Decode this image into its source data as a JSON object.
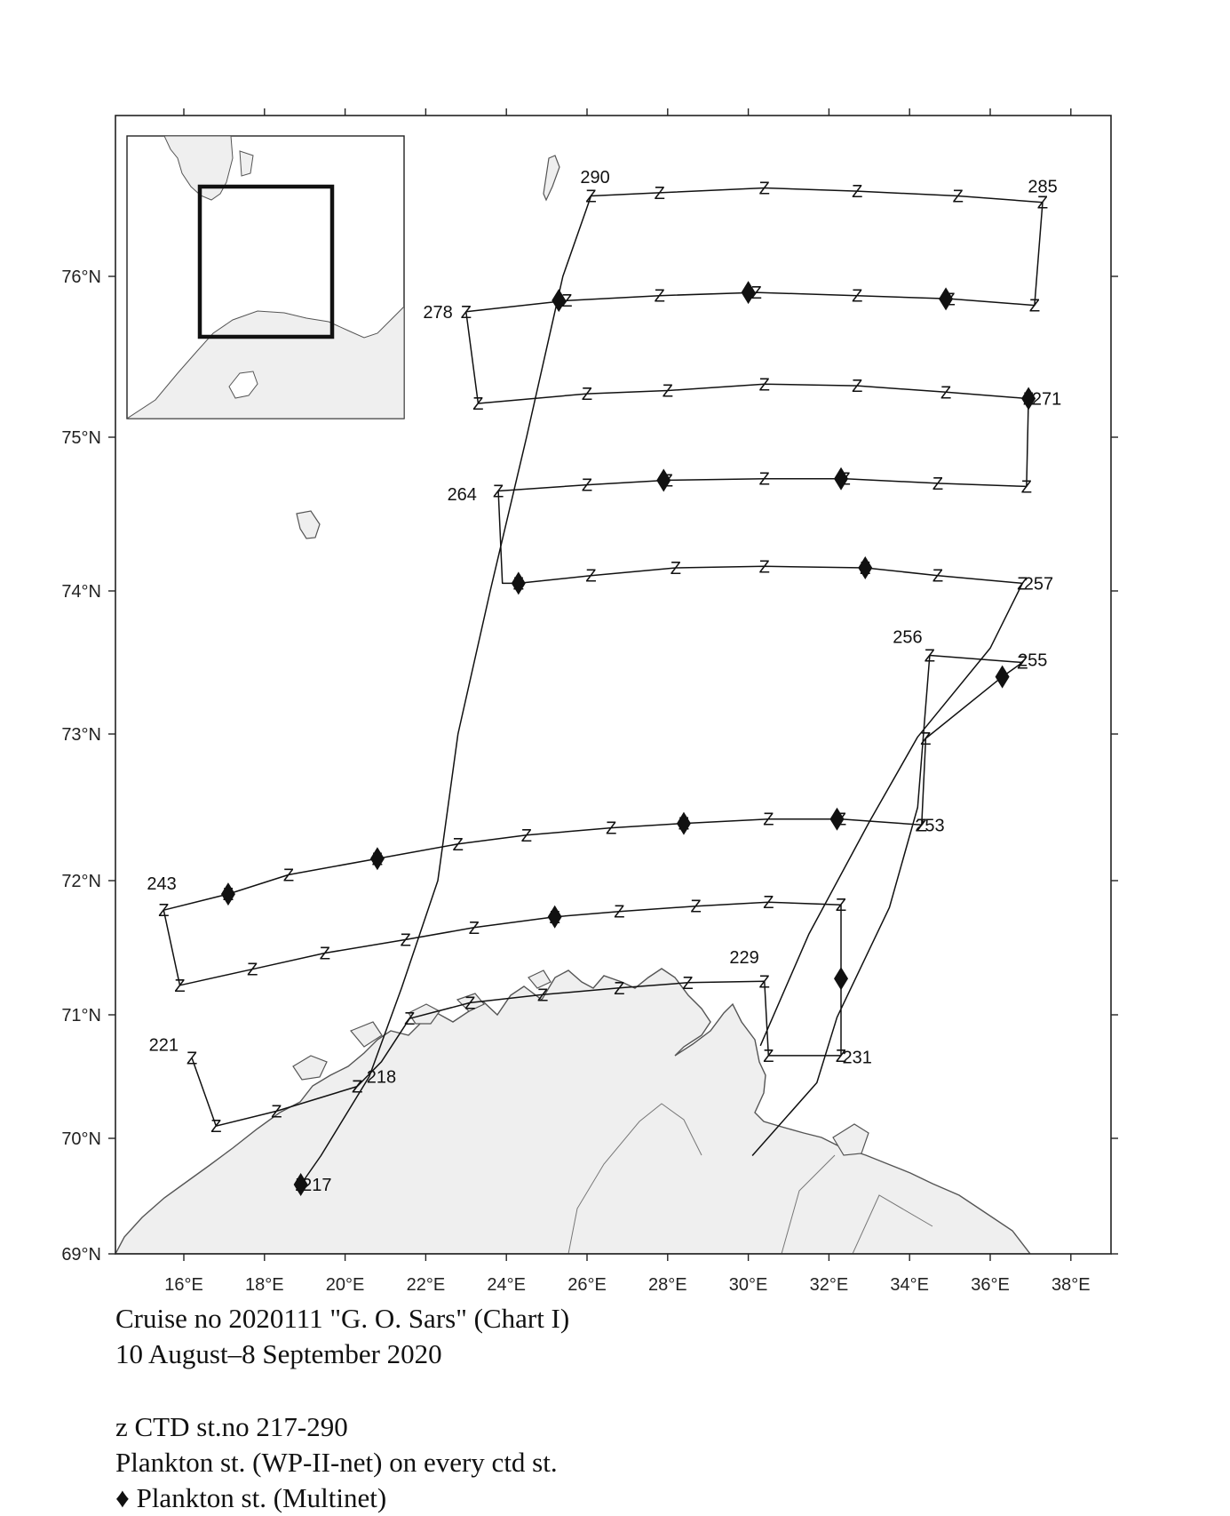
{
  "map": {
    "lat_ticks": [
      {
        "label": "76°N",
        "lat": 76
      },
      {
        "label": "75°N",
        "lat": 75
      },
      {
        "label": "74°N",
        "lat": 74
      },
      {
        "label": "73°N",
        "lat": 73
      },
      {
        "label": "72°N",
        "lat": 72
      },
      {
        "label": "71°N",
        "lat": 71
      },
      {
        "label": "70°N",
        "lat": 70
      },
      {
        "label": "69°N",
        "lat": 69
      }
    ],
    "lon_ticks": [
      {
        "label": "16°E",
        "lon": 16
      },
      {
        "label": "18°E",
        "lon": 18
      },
      {
        "label": "20°E",
        "lon": 20
      },
      {
        "label": "22°E",
        "lon": 22
      },
      {
        "label": "24°E",
        "lon": 24
      },
      {
        "label": "26°E",
        "lon": 26
      },
      {
        "label": "28°E",
        "lon": 28
      },
      {
        "label": "30°E",
        "lon": 30
      },
      {
        "label": "32°E",
        "lon": 32
      },
      {
        "label": "34°E",
        "lon": 34
      },
      {
        "label": "36°E",
        "lon": 36
      },
      {
        "label": "38°E",
        "lon": 38
      }
    ],
    "ctd_symbol": "Z",
    "station_labels": [
      {
        "text": "290",
        "lon": 26.2,
        "lat": 76.62
      },
      {
        "text": "285",
        "lon": 37.3,
        "lat": 76.56
      },
      {
        "text": "278",
        "lon": 22.3,
        "lat": 75.78
      },
      {
        "text": "271",
        "lon": 37.4,
        "lat": 75.24
      },
      {
        "text": "264",
        "lon": 22.9,
        "lat": 74.63
      },
      {
        "text": "257",
        "lon": 37.2,
        "lat": 74.05
      },
      {
        "text": "256",
        "lon": 33.95,
        "lat": 73.68
      },
      {
        "text": "255",
        "lon": 37.05,
        "lat": 73.52
      },
      {
        "text": "253",
        "lon": 34.5,
        "lat": 72.38
      },
      {
        "text": "243",
        "lon": 15.45,
        "lat": 71.98
      },
      {
        "text": "229",
        "lon": 29.9,
        "lat": 71.43
      },
      {
        "text": "221",
        "lon": 15.5,
        "lat": 70.76
      },
      {
        "text": "231",
        "lon": 32.7,
        "lat": 70.66
      },
      {
        "text": "218",
        "lon": 20.9,
        "lat": 70.5
      },
      {
        "text": "217",
        "lon": 19.3,
        "lat": 69.6
      }
    ],
    "transects": [
      [
        [
          16.2,
          70.65
        ],
        [
          16.8,
          70.1
        ],
        [
          18.3,
          70.22
        ],
        [
          20.3,
          70.42
        ],
        [
          20.9,
          70.62
        ],
        [
          21.6,
          70.97
        ],
        [
          23.1,
          71.09
        ],
        [
          24.9,
          71.15
        ],
        [
          26.8,
          71.2
        ],
        [
          28.5,
          71.24
        ],
        [
          30.4,
          71.25
        ],
        [
          30.5,
          70.67
        ],
        [
          32.3,
          70.67
        ],
        [
          32.3,
          71.27
        ],
        [
          32.3,
          71.82
        ],
        [
          30.5,
          71.84
        ],
        [
          28.7,
          71.81
        ],
        [
          26.8,
          71.77
        ],
        [
          25.2,
          71.73
        ],
        [
          23.2,
          71.65
        ],
        [
          21.5,
          71.56
        ],
        [
          19.5,
          71.46
        ],
        [
          17.7,
          71.34
        ],
        [
          15.9,
          71.22
        ],
        [
          15.5,
          71.78
        ],
        [
          17.1,
          71.9
        ],
        [
          18.6,
          72.04
        ],
        [
          20.8,
          72.15
        ],
        [
          22.8,
          72.25
        ],
        [
          24.5,
          72.31
        ],
        [
          26.6,
          72.36
        ],
        [
          28.4,
          72.39
        ],
        [
          30.5,
          72.42
        ],
        [
          32.3,
          72.42
        ],
        [
          34.3,
          72.38
        ],
        [
          34.4,
          72.97
        ],
        [
          36.3,
          73.4
        ],
        [
          36.8,
          73.5
        ],
        [
          34.5,
          73.55
        ],
        [
          34.2,
          72.5
        ],
        [
          33.5,
          71.8
        ],
        [
          32.2,
          70.98
        ],
        [
          31.7,
          70.45
        ],
        [
          30.1,
          69.85
        ]
      ],
      [
        [
          30.3,
          70.75
        ],
        [
          31.5,
          71.6
        ],
        [
          33.0,
          72.4
        ],
        [
          34.2,
          72.98
        ],
        [
          36.0,
          73.6
        ],
        [
          36.8,
          74.05
        ],
        [
          34.7,
          74.1
        ],
        [
          32.9,
          74.15
        ],
        [
          30.4,
          74.16
        ],
        [
          28.2,
          74.15
        ],
        [
          26.1,
          74.1
        ],
        [
          24.3,
          74.05
        ],
        [
          23.9,
          74.05
        ],
        [
          23.8,
          74.65
        ],
        [
          26.0,
          74.69
        ],
        [
          28.0,
          74.72
        ],
        [
          30.4,
          74.73
        ],
        [
          32.4,
          74.73
        ],
        [
          34.7,
          74.7
        ],
        [
          36.9,
          74.68
        ],
        [
          36.95,
          75.24
        ],
        [
          34.9,
          75.28
        ],
        [
          32.7,
          75.32
        ],
        [
          30.4,
          75.33
        ],
        [
          28.0,
          75.29
        ],
        [
          26.0,
          75.27
        ],
        [
          23.3,
          75.21
        ],
        [
          23.0,
          75.78
        ],
        [
          25.5,
          75.85
        ],
        [
          27.8,
          75.88
        ],
        [
          30.2,
          75.9
        ],
        [
          32.7,
          75.88
        ],
        [
          35.0,
          75.86
        ],
        [
          37.1,
          75.82
        ],
        [
          37.3,
          76.46
        ],
        [
          35.2,
          76.5
        ],
        [
          32.7,
          76.53
        ],
        [
          30.4,
          76.55
        ],
        [
          27.8,
          76.52
        ],
        [
          26.1,
          76.5
        ]
      ],
      [
        [
          26.1,
          76.5
        ],
        [
          25.4,
          76.0
        ],
        [
          24.5,
          75.0
        ],
        [
          23.6,
          74.0
        ],
        [
          22.8,
          73.0
        ],
        [
          22.3,
          72.0
        ],
        [
          21.4,
          71.2
        ],
        [
          20.6,
          70.5
        ],
        [
          19.4,
          69.85
        ],
        [
          18.9,
          69.6
        ]
      ]
    ],
    "ctd_stations": [
      [
        16.2,
        70.65
      ],
      [
        16.8,
        70.1
      ],
      [
        18.3,
        70.22
      ],
      [
        20.3,
        70.42
      ],
      [
        21.6,
        70.97
      ],
      [
        23.1,
        71.09
      ],
      [
        24.9,
        71.15
      ],
      [
        26.8,
        71.2
      ],
      [
        28.5,
        71.24
      ],
      [
        30.4,
        71.25
      ],
      [
        30.5,
        70.67
      ],
      [
        32.3,
        70.67
      ],
      [
        32.3,
        71.82
      ],
      [
        30.5,
        71.84
      ],
      [
        28.7,
        71.81
      ],
      [
        26.8,
        71.77
      ],
      [
        25.2,
        71.73
      ],
      [
        23.2,
        71.65
      ],
      [
        21.5,
        71.56
      ],
      [
        19.5,
        71.46
      ],
      [
        17.7,
        71.34
      ],
      [
        15.9,
        71.22
      ],
      [
        15.5,
        71.78
      ],
      [
        17.1,
        71.9
      ],
      [
        18.6,
        72.04
      ],
      [
        20.8,
        72.15
      ],
      [
        22.8,
        72.25
      ],
      [
        24.5,
        72.31
      ],
      [
        26.6,
        72.36
      ],
      [
        28.4,
        72.39
      ],
      [
        30.5,
        72.42
      ],
      [
        32.3,
        72.42
      ],
      [
        34.3,
        72.38
      ],
      [
        34.4,
        72.97
      ],
      [
        36.8,
        73.5
      ],
      [
        34.5,
        73.55
      ],
      [
        36.8,
        74.05
      ],
      [
        34.7,
        74.1
      ],
      [
        32.9,
        74.15
      ],
      [
        30.4,
        74.16
      ],
      [
        28.2,
        74.15
      ],
      [
        26.1,
        74.1
      ],
      [
        24.3,
        74.05
      ],
      [
        23.8,
        74.65
      ],
      [
        26.0,
        74.69
      ],
      [
        28.0,
        74.72
      ],
      [
        30.4,
        74.73
      ],
      [
        32.4,
        74.73
      ],
      [
        34.7,
        74.7
      ],
      [
        36.9,
        74.68
      ],
      [
        36.95,
        75.24
      ],
      [
        34.9,
        75.28
      ],
      [
        32.7,
        75.32
      ],
      [
        30.4,
        75.33
      ],
      [
        28.0,
        75.29
      ],
      [
        26.0,
        75.27
      ],
      [
        23.3,
        75.21
      ],
      [
        23.0,
        75.78
      ],
      [
        25.5,
        75.85
      ],
      [
        27.8,
        75.88
      ],
      [
        30.2,
        75.9
      ],
      [
        32.7,
        75.88
      ],
      [
        35.0,
        75.86
      ],
      [
        37.1,
        75.82
      ],
      [
        37.3,
        76.46
      ],
      [
        35.2,
        76.5
      ],
      [
        32.7,
        76.53
      ],
      [
        30.4,
        76.55
      ],
      [
        27.8,
        76.52
      ],
      [
        26.1,
        76.5
      ],
      [
        18.9,
        69.6
      ],
      [
        20.3,
        70.42
      ]
    ],
    "multinet_stations": [
      [
        18.9,
        69.6
      ],
      [
        32.3,
        71.27
      ],
      [
        25.2,
        71.73
      ],
      [
        17.1,
        71.9
      ],
      [
        20.8,
        72.15
      ],
      [
        28.4,
        72.39
      ],
      [
        32.2,
        72.42
      ],
      [
        36.3,
        73.4
      ],
      [
        24.3,
        74.05
      ],
      [
        32.9,
        74.15
      ],
      [
        27.9,
        74.72
      ],
      [
        32.3,
        74.73
      ],
      [
        36.95,
        75.24
      ],
      [
        25.3,
        75.85
      ],
      [
        30.0,
        75.9
      ],
      [
        34.9,
        75.86
      ]
    ]
  },
  "caption": {
    "line1": "Cruise no 2020111  \"G. O. Sars\" (Chart I)",
    "line2": "10 August–8 September 2020",
    "line3": "z CTD st.no 217-290",
    "line4": "Plankton st. (WP-II-net) on every ctd st.",
    "line5_symbol": "♦",
    "line5": " Plankton st. (Multinet)"
  }
}
